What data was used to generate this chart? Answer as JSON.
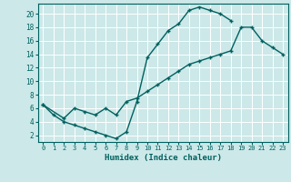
{
  "xlabel": "Humidex (Indice chaleur)",
  "bg_color": "#cce8e8",
  "line_color": "#006060",
  "grid_color": "#ffffff",
  "xlim": [
    -0.5,
    23.5
  ],
  "ylim": [
    1.0,
    21.5
  ],
  "xticks": [
    0,
    1,
    2,
    3,
    4,
    5,
    6,
    7,
    8,
    9,
    10,
    11,
    12,
    13,
    14,
    15,
    16,
    17,
    18,
    19,
    20,
    21,
    22,
    23
  ],
  "yticks": [
    2,
    4,
    6,
    8,
    10,
    12,
    14,
    16,
    18,
    20
  ],
  "line1_x": [
    0,
    1,
    2,
    3,
    4,
    5,
    6,
    7,
    8,
    9,
    10,
    11,
    12,
    13,
    14,
    15,
    16,
    17,
    18
  ],
  "line1_y": [
    6.5,
    5.0,
    4.0,
    3.5,
    3.0,
    2.5,
    2.0,
    1.5,
    2.5,
    7.0,
    13.5,
    15.5,
    17.5,
    18.5,
    20.5,
    21.0,
    20.5,
    20.0,
    19.0
  ],
  "line2_x": [
    0,
    2,
    3,
    4,
    5,
    6,
    7,
    8,
    9,
    10,
    11,
    12,
    13,
    14,
    15,
    16,
    17,
    18,
    19,
    20,
    21,
    22,
    23
  ],
  "line2_y": [
    6.5,
    4.5,
    6.0,
    5.5,
    5.0,
    6.0,
    5.0,
    7.0,
    7.5,
    8.5,
    9.5,
    10.5,
    11.5,
    12.5,
    13.0,
    13.5,
    14.0,
    14.5,
    18.0,
    18.0,
    16.0,
    15.0,
    14.0
  ]
}
